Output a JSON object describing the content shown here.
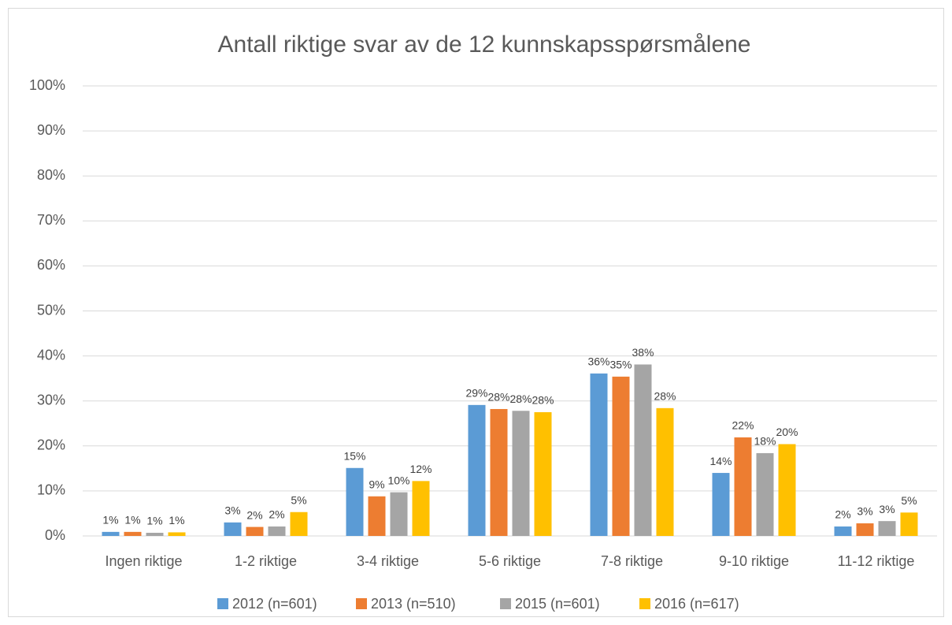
{
  "chart_data": {
    "type": "bar",
    "title": "Antall riktige svar av de 12 kunnskapsspørsmålene",
    "categories": [
      "Ingen riktige",
      "1-2 riktige",
      "3-4 riktige",
      "5-6 riktige",
      "7-8 riktige",
      "9-10 riktige",
      "11-12 riktige"
    ],
    "series": [
      {
        "name": "2012 (n=601)",
        "color": "#5b9bd5",
        "values": [
          0.9,
          3.0,
          15.1,
          29.1,
          36.1,
          14.0,
          2.1
        ],
        "value_labels": [
          "1%",
          "3%",
          "15%",
          "29%",
          "36%",
          "14%",
          "2%"
        ]
      },
      {
        "name": "2013 (n=510)",
        "color": "#ed7d31",
        "values": [
          0.9,
          2.0,
          8.8,
          28.2,
          35.4,
          21.9,
          2.8
        ],
        "value_labels": [
          "1%",
          "2%",
          "9%",
          "28%",
          "35%",
          "22%",
          "3%"
        ]
      },
      {
        "name": "2015 (n=601)",
        "color": "#a5a5a5",
        "values": [
          0.7,
          2.1,
          9.7,
          27.8,
          38.1,
          18.4,
          3.3
        ],
        "value_labels": [
          "1%",
          "2%",
          "10%",
          "28%",
          "38%",
          "18%",
          "3%"
        ]
      },
      {
        "name": "2016 (n=617)",
        "color": "#ffc000",
        "values": [
          0.8,
          5.3,
          12.2,
          27.5,
          28.4,
          20.4,
          5.2
        ],
        "value_labels": [
          "1%",
          "5%",
          "12%",
          "28%",
          "28%",
          "20%",
          "5%"
        ]
      }
    ],
    "ylim": [
      0,
      100
    ],
    "yticks": [
      {
        "value": 0,
        "label": "0%"
      },
      {
        "value": 10,
        "label": "10%"
      },
      {
        "value": 20,
        "label": "20%"
      },
      {
        "value": 30,
        "label": "30%"
      },
      {
        "value": 40,
        "label": "40%"
      },
      {
        "value": 50,
        "label": "50%"
      },
      {
        "value": 60,
        "label": "60%"
      },
      {
        "value": 70,
        "label": "70%"
      },
      {
        "value": 80,
        "label": "80%"
      },
      {
        "value": 90,
        "label": "90%"
      },
      {
        "value": 100,
        "label": "100%"
      }
    ],
    "grid": true,
    "legend": "bottom"
  }
}
